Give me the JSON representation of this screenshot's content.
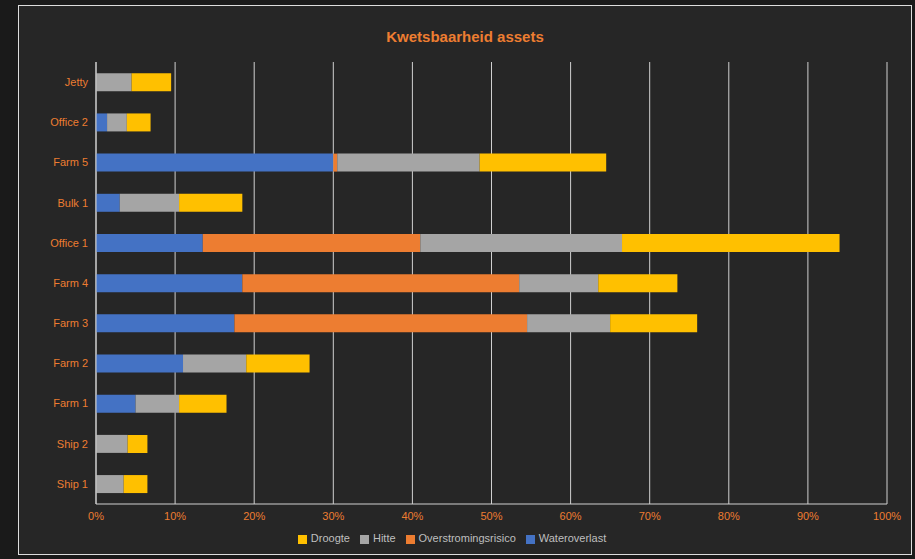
{
  "chart_data": {
    "type": "bar",
    "title": "Kwetsbaarheid assets",
    "orientation": "horizontal",
    "stacked": true,
    "categories": [
      "Jetty",
      "Office 2",
      "Farm 5",
      "Bulk 1",
      "Office 1",
      "Farm 4",
      "Farm 3",
      "Farm 2",
      "Farm 1",
      "Ship 2",
      "Ship 1"
    ],
    "series": [
      {
        "name": "Wateroverlast",
        "color": "#4472c4",
        "values": [
          0,
          1.4,
          30,
          3,
          13.5,
          18.5,
          17.5,
          11,
          5,
          0,
          0
        ]
      },
      {
        "name": "Overstromingsrisico",
        "color": "#ed7d31",
        "values": [
          0,
          0,
          0.5,
          0,
          27.5,
          35,
          37,
          0,
          0,
          0,
          0
        ]
      },
      {
        "name": "Hitte",
        "color": "#a5a5a5",
        "values": [
          4.5,
          2.5,
          18,
          7.5,
          25.5,
          10,
          10.5,
          8,
          5.5,
          4,
          3.5
        ]
      },
      {
        "name": "Droogte",
        "color": "#ffc000",
        "values": [
          5,
          3,
          16,
          8,
          27.5,
          10,
          11,
          8,
          6,
          2.5,
          3
        ]
      }
    ],
    "xlim": [
      0,
      100
    ],
    "xticks": [
      {
        "value": 0,
        "label": "0%"
      },
      {
        "value": 10,
        "label": "10%"
      },
      {
        "value": 20,
        "label": "20%"
      },
      {
        "value": 30,
        "label": "30%"
      },
      {
        "value": 40,
        "label": "40%"
      },
      {
        "value": 50,
        "label": "50%"
      },
      {
        "value": 60,
        "label": "60%"
      },
      {
        "value": 70,
        "label": "70%"
      },
      {
        "value": 80,
        "label": "80%"
      },
      {
        "value": 90,
        "label": "90%"
      },
      {
        "value": 100,
        "label": "100%"
      }
    ],
    "grid": true,
    "legend": "bottom"
  }
}
